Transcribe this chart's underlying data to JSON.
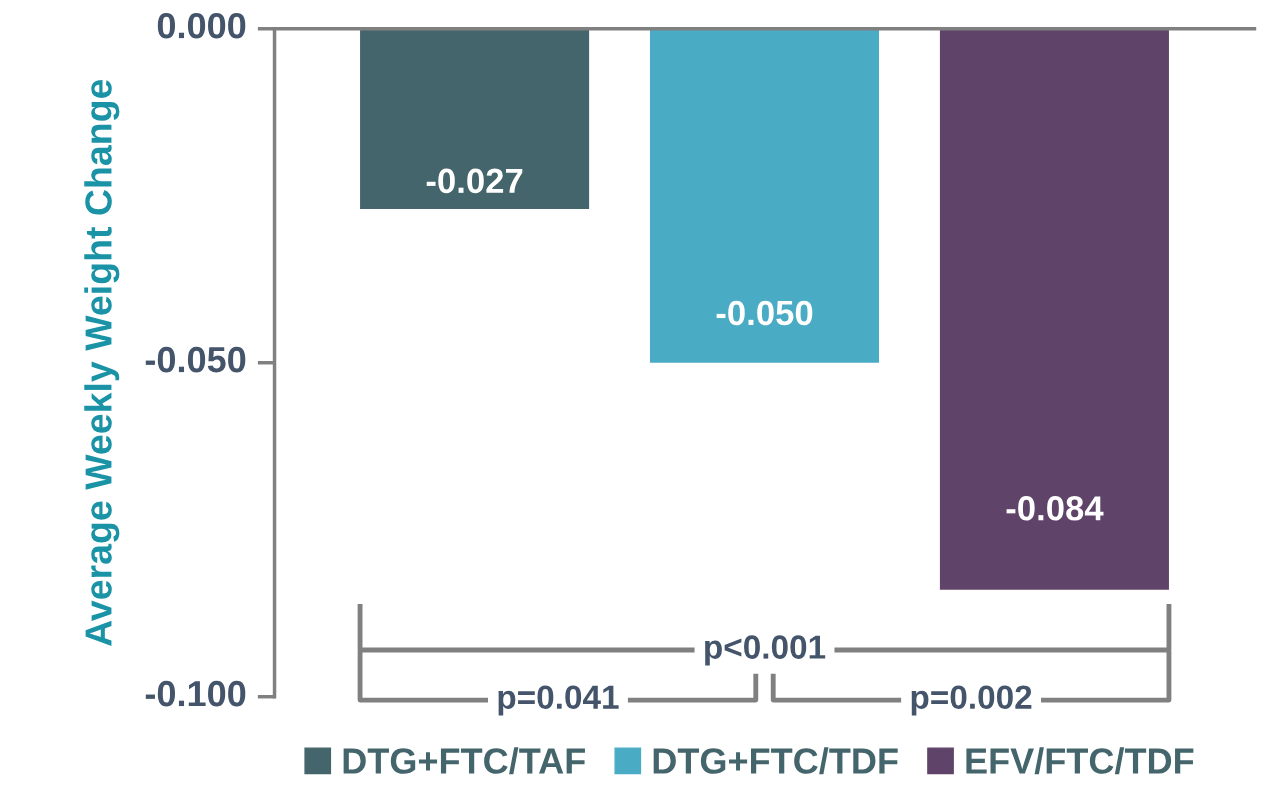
{
  "chart_data": {
    "type": "bar",
    "ylabel": "Average Weekly Weight Change",
    "categories": [
      null,
      null,
      null
    ],
    "series": [
      {
        "name": "DTG+FTC/TAF",
        "color": "#44656b",
        "values": [
          -0.027,
          null,
          null
        ],
        "value_labels": [
          "-0.027",
          null,
          null
        ]
      },
      {
        "name": "DTG+FTC/TDF",
        "color": "#4aabc5",
        "values": [
          null,
          -0.05,
          null
        ],
        "value_labels": [
          null,
          "-0.050",
          null
        ]
      },
      {
        "name": "EFV/FTC/TDF",
        "color": "#5f4369",
        "values": [
          null,
          null,
          -0.084
        ],
        "value_labels": [
          null,
          null,
          "-0.084"
        ]
      }
    ],
    "ylim": [
      -0.1,
      0
    ],
    "yticks": [
      {
        "value": 0,
        "label": "0.000"
      },
      {
        "value": -0.05,
        "label": "-0.050"
      },
      {
        "value": -0.1,
        "label": "-0.100"
      }
    ],
    "annotations": [
      "p<0.001",
      "p=0.041",
      "p=0.002"
    ],
    "legend": "bottom",
    "grid": false
  }
}
